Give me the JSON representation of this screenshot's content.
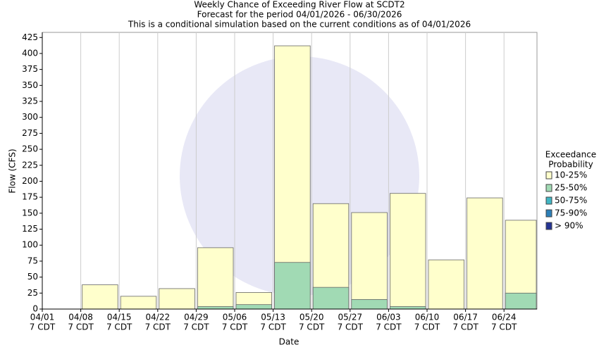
{
  "chart_data": {
    "type": "bar",
    "overlay": true,
    "title": [
      "Weekly Chance of Exceeding River Flow at SCDT2",
      "Forecast for the period 04/01/2026 - 06/30/2026",
      "This is a conditional simulation based on the current conditions as of 04/01/2026"
    ],
    "x_label": "Date",
    "y_label": "Flow (CFS)",
    "categories": [
      "04/01",
      "04/08",
      "04/15",
      "04/22",
      "04/29",
      "05/06",
      "05/13",
      "05/20",
      "05/27",
      "06/03",
      "06/10",
      "06/17",
      "06/24"
    ],
    "x_tick_sublabel": "7 CDT",
    "legend_title": [
      "Exceedance",
      "Probability"
    ],
    "legend_position": "right",
    "grid": "x",
    "series": [
      {
        "name": "10-25%",
        "color": "#ffffcc",
        "values": [
          null,
          38,
          20,
          32,
          96,
          26,
          412,
          165,
          151,
          181,
          77,
          174,
          139
        ]
      },
      {
        "name": "25-50%",
        "color": "#a1dab4",
        "values": [
          null,
          null,
          null,
          null,
          4,
          7,
          73,
          34,
          15,
          4,
          null,
          null,
          25
        ]
      },
      {
        "name": "50-75%",
        "color": "#41b6c4",
        "values": [
          null,
          null,
          null,
          null,
          null,
          null,
          null,
          null,
          null,
          null,
          null,
          null,
          null
        ]
      },
      {
        "name": "75-90%",
        "color": "#2c7fb8",
        "values": [
          null,
          null,
          null,
          null,
          null,
          null,
          null,
          null,
          null,
          null,
          null,
          null,
          null
        ]
      },
      {
        "name": "> 90%",
        "color": "#253494",
        "values": [
          null,
          null,
          null,
          null,
          null,
          null,
          null,
          null,
          null,
          null,
          null,
          null,
          null
        ]
      }
    ],
    "ylim": [
      0,
      433
    ],
    "yticks": [
      0,
      25,
      50,
      75,
      100,
      125,
      150,
      175,
      200,
      225,
      250,
      275,
      300,
      325,
      350,
      375,
      400,
      425
    ]
  }
}
